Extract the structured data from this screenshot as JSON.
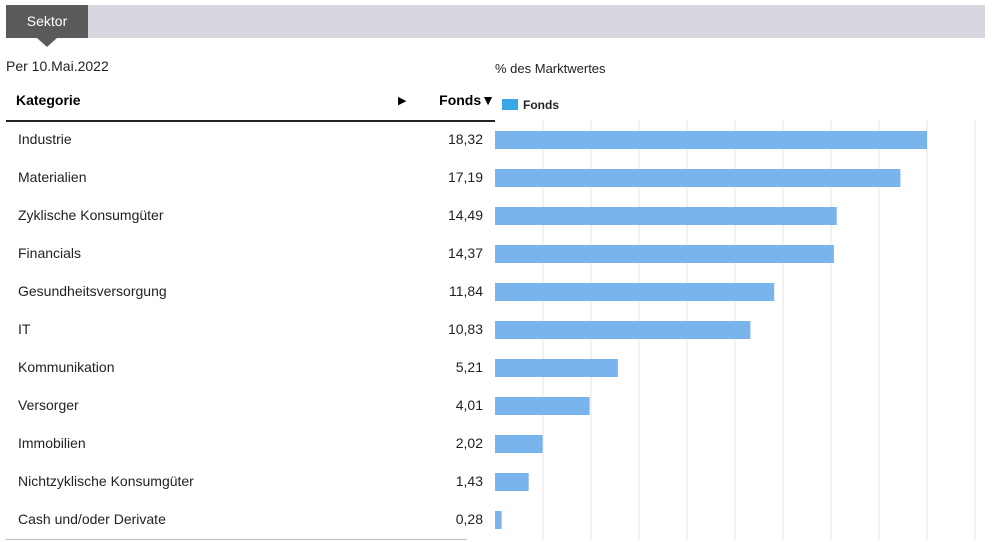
{
  "tab": {
    "label": "Sektor"
  },
  "as_of": "Per 10.Mai.2022",
  "table": {
    "col_category": "Kategorie",
    "sort_arrow": "▶",
    "col_fonds": "Fonds▼"
  },
  "chart_data": {
    "type": "bar",
    "orientation": "horizontal",
    "title": "% des Marktwertes",
    "categories": [
      "Industrie",
      "Materialien",
      "Zyklische Konsumgüter",
      "Financials",
      "Gesundheitsversorgung",
      "IT",
      "Kommunikation",
      "Versorger",
      "Immobilien",
      "Nichtzyklische Konsumgüter",
      "Cash und/oder Derivate"
    ],
    "value_labels": [
      "18,32",
      "17,19",
      "14,49",
      "14,37",
      "11,84",
      "10,83",
      "5,21",
      "4,01",
      "2,02",
      "1,43",
      "0,28"
    ],
    "series": [
      {
        "name": "Fonds",
        "values": [
          18.32,
          17.19,
          14.49,
          14.37,
          11.84,
          10.83,
          5.21,
          4.01,
          2.02,
          1.43,
          0.28
        ]
      }
    ],
    "legend": "top-left",
    "grid": true,
    "bar_color": "#7ab4ec",
    "legend_color": "#3aa8e8"
  }
}
